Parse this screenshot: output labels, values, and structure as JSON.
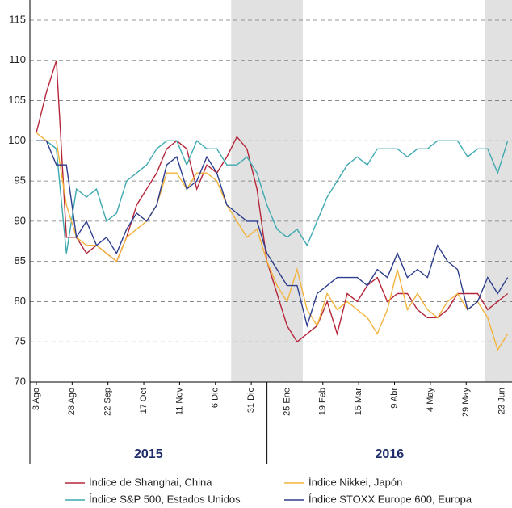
{
  "chart_data": {
    "type": "line",
    "xlim": [
      -4.5,
      332
    ],
    "xticks": [
      {
        "value": 0,
        "label": "3 Ago"
      },
      {
        "value": 25,
        "label": "28 Ago"
      },
      {
        "value": 50,
        "label": "22 Sep"
      },
      {
        "value": 75,
        "label": "17 Oct"
      },
      {
        "value": 100,
        "label": "11 Nov"
      },
      {
        "value": 125,
        "label": "6 Dic"
      },
      {
        "value": 150,
        "label": "31 Dic"
      },
      {
        "value": 175,
        "label": "25 Ene"
      },
      {
        "value": 200,
        "label": "19 Feb"
      },
      {
        "value": 225,
        "label": "15 Mar"
      },
      {
        "value": 250,
        "label": "9 Abr"
      },
      {
        "value": 275,
        "label": "4 May"
      },
      {
        "value": 300,
        "label": "29 May"
      },
      {
        "value": 325,
        "label": "23 Jun"
      }
    ],
    "ylim": [
      70,
      115
    ],
    "yticks": [
      70,
      75,
      80,
      85,
      90,
      95,
      100,
      105,
      110,
      115
    ],
    "grid": true,
    "shaded": [
      [
        136,
        186
      ],
      [
        313,
        332
      ]
    ],
    "years": [
      {
        "label": "2015",
        "start": -4.5,
        "end": 161
      },
      {
        "label": "2016",
        "start": 161,
        "end": 332
      }
    ],
    "x": [
      0,
      7,
      14,
      21,
      28,
      35,
      42,
      49,
      56,
      63,
      70,
      77,
      84,
      91,
      98,
      105,
      112,
      119,
      126,
      133,
      140,
      147,
      154,
      161,
      168,
      175,
      182,
      189,
      196,
      203,
      210,
      217,
      224,
      231,
      238,
      245,
      252,
      259,
      266,
      273,
      280,
      287,
      294,
      301,
      308,
      315,
      322,
      329
    ],
    "series": [
      {
        "name": "Índice de Shanghai, China",
        "color": "#b5263b",
        "values": [
          101,
          106,
          110,
          88,
          88,
          86,
          87,
          86,
          85,
          88,
          92,
          94,
          96,
          99,
          100,
          99,
          94,
          97,
          96,
          98,
          100.5,
          99,
          94,
          85,
          81,
          77,
          75,
          76,
          77,
          80,
          76,
          81,
          80,
          82,
          83,
          80,
          81,
          81,
          79,
          78,
          78,
          79,
          81,
          81,
          81,
          79,
          80,
          81
        ]
      },
      {
        "name": "Índice S&P 500, Estados Unidos",
        "color": "#3fa9b0",
        "values": [
          100,
          100,
          99,
          86,
          94,
          93,
          94,
          90,
          91,
          95,
          96,
          97,
          99,
          100,
          100,
          97,
          100,
          99,
          99,
          97,
          97,
          98,
          96,
          92,
          89,
          88,
          89,
          87,
          90,
          93,
          95,
          97,
          98,
          97,
          99,
          99,
          99,
          98,
          99,
          99,
          100,
          100,
          100,
          98,
          99,
          99,
          96,
          100
        ]
      },
      {
        "name": "Índice Nikkei, Japón",
        "color": "#f2b33d",
        "values": [
          101,
          100,
          100,
          92,
          88,
          87,
          87,
          86,
          85,
          88,
          89,
          90,
          92,
          96,
          96,
          94,
          96,
          96,
          95,
          92,
          90,
          88,
          89,
          85,
          82,
          80,
          84,
          79,
          77,
          81,
          79,
          80,
          79,
          78,
          76,
          79,
          84,
          79,
          81,
          79,
          78,
          80,
          81,
          79,
          80,
          78,
          74,
          76
        ]
      },
      {
        "name": "Índice STOXX Europe 600, Europa",
        "color": "#2e3e8c",
        "values": [
          100,
          100,
          97,
          97,
          88,
          90,
          87,
          88,
          86,
          89,
          91,
          90,
          92,
          97,
          98,
          94,
          95,
          98,
          96,
          92,
          91,
          90,
          90,
          86,
          84,
          82,
          82,
          77,
          81,
          82,
          83,
          83,
          83,
          82,
          84,
          83,
          86,
          83,
          84,
          83,
          87,
          85,
          84,
          79,
          80,
          83,
          81,
          83
        ]
      }
    ]
  }
}
